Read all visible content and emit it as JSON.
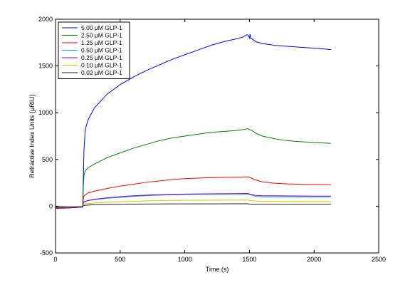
{
  "chart_data": {
    "type": "line",
    "title": "",
    "xlabel": "Time (s)",
    "ylabel": "Refractive Index Units (μRIU)",
    "xlim": [
      0,
      2500
    ],
    "ylim": [
      -500,
      2000
    ],
    "x_ticks": [
      0,
      500,
      1000,
      1500,
      2000,
      2500
    ],
    "y_ticks": [
      -500,
      0,
      500,
      1000,
      1500,
      2000
    ],
    "grid": false,
    "legend_position": "top-left",
    "series": [
      {
        "name": "5.00 μM GLP-1",
        "color": "#0000ff",
        "points": [
          [
            0,
            -5
          ],
          [
            100,
            -8
          ],
          [
            200,
            -10
          ],
          [
            210,
            -10
          ],
          [
            215,
            300
          ],
          [
            220,
            600
          ],
          [
            230,
            820
          ],
          [
            250,
            920
          ],
          [
            300,
            1050
          ],
          [
            400,
            1200
          ],
          [
            500,
            1300
          ],
          [
            600,
            1380
          ],
          [
            700,
            1450
          ],
          [
            800,
            1510
          ],
          [
            900,
            1570
          ],
          [
            1000,
            1620
          ],
          [
            1100,
            1670
          ],
          [
            1200,
            1720
          ],
          [
            1300,
            1760
          ],
          [
            1400,
            1790
          ],
          [
            1450,
            1810
          ],
          [
            1480,
            1835
          ],
          [
            1490,
            1830
          ],
          [
            1500,
            1800
          ],
          [
            1505,
            1840
          ],
          [
            1510,
            1790
          ],
          [
            1520,
            1790
          ],
          [
            1550,
            1760
          ],
          [
            1600,
            1740
          ],
          [
            1700,
            1720
          ],
          [
            1800,
            1710
          ],
          [
            1900,
            1700
          ],
          [
            2000,
            1690
          ],
          [
            2100,
            1680
          ],
          [
            2130,
            1675
          ]
        ]
      },
      {
        "name": "2.50 μM GLP-1",
        "color": "#008000",
        "points": [
          [
            0,
            -5
          ],
          [
            100,
            -6
          ],
          [
            200,
            -8
          ],
          [
            210,
            -8
          ],
          [
            215,
            200
          ],
          [
            220,
            330
          ],
          [
            230,
            380
          ],
          [
            250,
            410
          ],
          [
            300,
            450
          ],
          [
            400,
            520
          ],
          [
            500,
            570
          ],
          [
            600,
            620
          ],
          [
            700,
            660
          ],
          [
            800,
            700
          ],
          [
            900,
            730
          ],
          [
            1000,
            750
          ],
          [
            1100,
            770
          ],
          [
            1200,
            790
          ],
          [
            1300,
            800
          ],
          [
            1400,
            810
          ],
          [
            1450,
            820
          ],
          [
            1490,
            830
          ],
          [
            1500,
            820
          ],
          [
            1520,
            810
          ],
          [
            1550,
            780
          ],
          [
            1600,
            750
          ],
          [
            1700,
            720
          ],
          [
            1800,
            700
          ],
          [
            1900,
            690
          ],
          [
            2000,
            680
          ],
          [
            2100,
            675
          ],
          [
            2130,
            672
          ]
        ]
      },
      {
        "name": "1.25 μM GLP-1",
        "color": "#ff0000",
        "points": [
          [
            0,
            -15
          ],
          [
            100,
            -18
          ],
          [
            200,
            -10
          ],
          [
            210,
            -5
          ],
          [
            215,
            80
          ],
          [
            220,
            110
          ],
          [
            250,
            140
          ],
          [
            300,
            160
          ],
          [
            400,
            190
          ],
          [
            500,
            215
          ],
          [
            600,
            235
          ],
          [
            700,
            255
          ],
          [
            800,
            270
          ],
          [
            900,
            285
          ],
          [
            1000,
            295
          ],
          [
            1100,
            300
          ],
          [
            1200,
            305
          ],
          [
            1300,
            308
          ],
          [
            1400,
            310
          ],
          [
            1450,
            312
          ],
          [
            1490,
            315
          ],
          [
            1500,
            310
          ],
          [
            1550,
            280
          ],
          [
            1600,
            260
          ],
          [
            1700,
            245
          ],
          [
            1800,
            238
          ],
          [
            1900,
            235
          ],
          [
            2000,
            232
          ],
          [
            2130,
            230
          ]
        ]
      },
      {
        "name": "0.50 μM GLP-1",
        "color": "#00aaff",
        "points": [
          [
            0,
            -10
          ],
          [
            100,
            -10
          ],
          [
            200,
            -5
          ],
          [
            210,
            0
          ],
          [
            215,
            40
          ],
          [
            220,
            50
          ],
          [
            250,
            60
          ],
          [
            300,
            70
          ],
          [
            400,
            85
          ],
          [
            500,
            95
          ],
          [
            600,
            105
          ],
          [
            700,
            112
          ],
          [
            800,
            118
          ],
          [
            900,
            122
          ],
          [
            1000,
            125
          ],
          [
            1200,
            128
          ],
          [
            1400,
            130
          ],
          [
            1490,
            130
          ],
          [
            1500,
            125
          ],
          [
            1550,
            105
          ],
          [
            1600,
            100
          ],
          [
            1800,
            100
          ],
          [
            2000,
            100
          ],
          [
            2130,
            100
          ]
        ]
      },
      {
        "name": "0.25 μM GLP-1",
        "color": "#9900aa",
        "points": [
          [
            0,
            -25
          ],
          [
            100,
            -20
          ],
          [
            200,
            -10
          ],
          [
            210,
            -5
          ],
          [
            215,
            30
          ],
          [
            220,
            45
          ],
          [
            250,
            60
          ],
          [
            300,
            75
          ],
          [
            400,
            90
          ],
          [
            500,
            102
          ],
          [
            600,
            112
          ],
          [
            700,
            118
          ],
          [
            800,
            123
          ],
          [
            900,
            127
          ],
          [
            1000,
            130
          ],
          [
            1200,
            133
          ],
          [
            1400,
            135
          ],
          [
            1490,
            136
          ],
          [
            1500,
            130
          ],
          [
            1550,
            115
          ],
          [
            1600,
            112
          ],
          [
            1800,
            110
          ],
          [
            2000,
            108
          ],
          [
            2130,
            108
          ]
        ]
      },
      {
        "name": "0.10 μM GLP-1",
        "color": "#cccc00",
        "points": [
          [
            0,
            -10
          ],
          [
            100,
            -8
          ],
          [
            200,
            -5
          ],
          [
            210,
            0
          ],
          [
            215,
            15
          ],
          [
            220,
            20
          ],
          [
            250,
            28
          ],
          [
            300,
            35
          ],
          [
            400,
            42
          ],
          [
            500,
            48
          ],
          [
            600,
            53
          ],
          [
            700,
            57
          ],
          [
            800,
            60
          ],
          [
            900,
            62
          ],
          [
            1000,
            63
          ],
          [
            1200,
            65
          ],
          [
            1400,
            66
          ],
          [
            1490,
            66
          ],
          [
            1500,
            60
          ],
          [
            1550,
            55
          ],
          [
            1600,
            52
          ],
          [
            1800,
            50
          ],
          [
            2000,
            50
          ],
          [
            2130,
            50
          ]
        ]
      },
      {
        "name": "0.02 μM GLP-1",
        "color": "#222222",
        "points": [
          [
            0,
            -10
          ],
          [
            100,
            -8
          ],
          [
            200,
            -5
          ],
          [
            210,
            0
          ],
          [
            215,
            5
          ],
          [
            220,
            8
          ],
          [
            250,
            12
          ],
          [
            300,
            15
          ],
          [
            400,
            18
          ],
          [
            500,
            20
          ],
          [
            600,
            22
          ],
          [
            700,
            23
          ],
          [
            800,
            24
          ],
          [
            900,
            25
          ],
          [
            1000,
            25
          ],
          [
            1200,
            25
          ],
          [
            1400,
            26
          ],
          [
            1490,
            26
          ],
          [
            1500,
            23
          ],
          [
            1550,
            20
          ],
          [
            1600,
            20
          ],
          [
            1800,
            20
          ],
          [
            2000,
            20
          ],
          [
            2130,
            20
          ]
        ]
      }
    ]
  }
}
